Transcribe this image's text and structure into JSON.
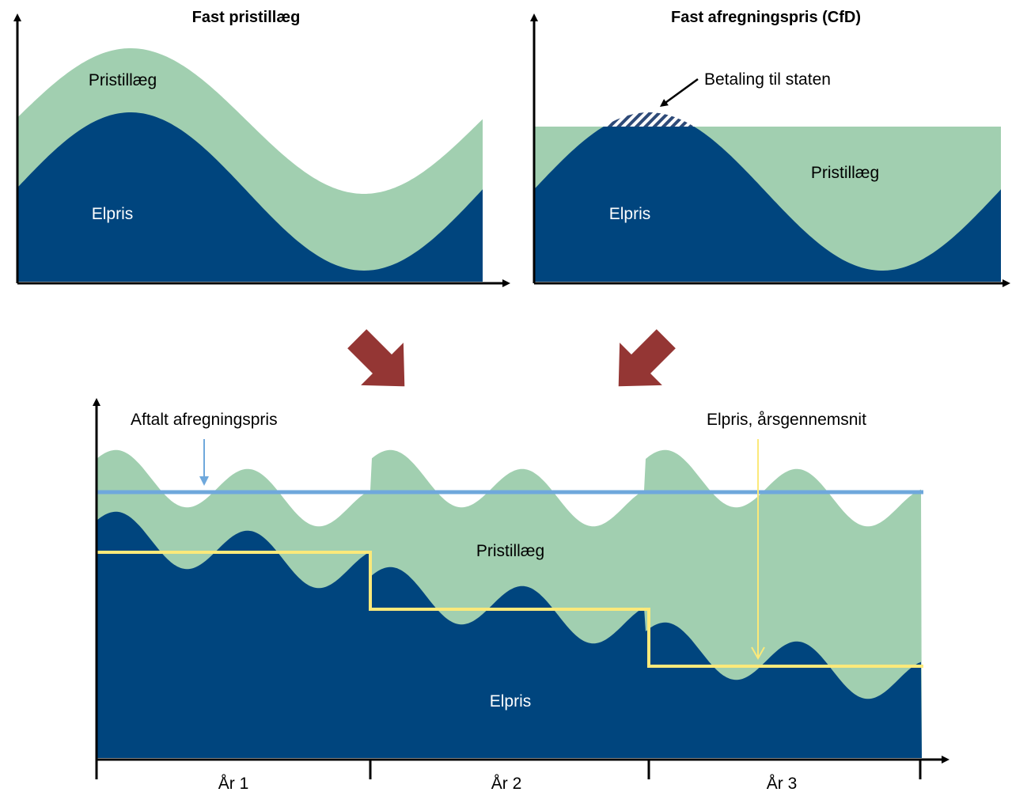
{
  "panels": [
    {
      "title": "Fast pristillæg",
      "upper": "Pristillæg",
      "lower": "Elpris"
    },
    {
      "title": "Fast afregningspris  (CfD)",
      "upper": "Pristillæg",
      "lower": "Elpris",
      "annotation": "Betaling til staten"
    }
  ],
  "combined": {
    "upper": "Pristillæg",
    "lower": "Elpris",
    "strike_label": "Aftalt afregningspris",
    "average_label": "Elpris, årsgennemsnit",
    "years": [
      "År 1",
      "År 2",
      "År 3"
    ]
  }
}
